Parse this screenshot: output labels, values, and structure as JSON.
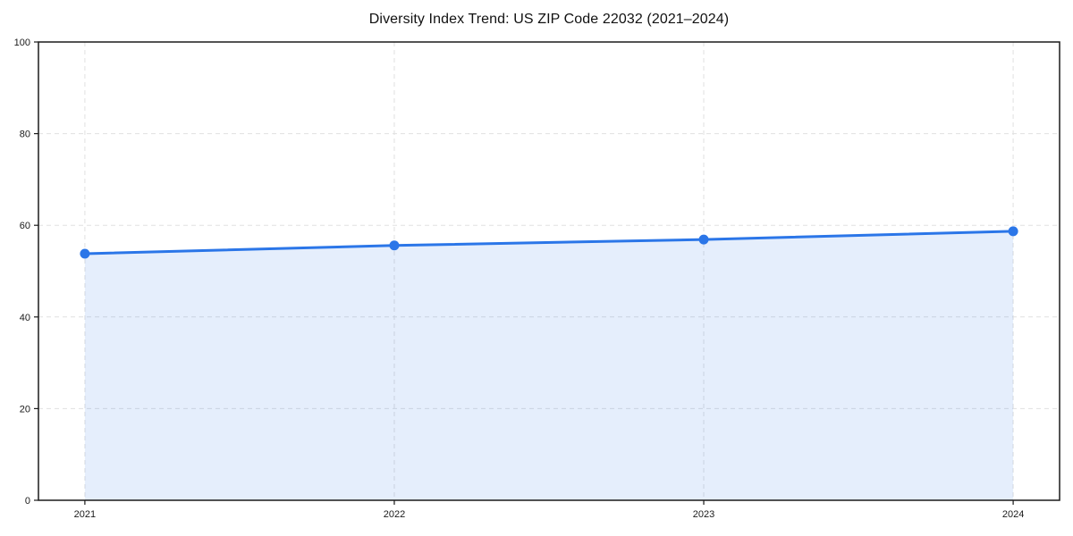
{
  "chart_data": {
    "type": "area",
    "title": "Diversity Index Trend: US ZIP Code 22032 (2021–2024)",
    "series_name": "Diversity Index",
    "x": [
      2021,
      2022,
      2023,
      2024
    ],
    "x_tick_labels": [
      "2021",
      "2022",
      "2023",
      "2024"
    ],
    "values": [
      53.8,
      55.6,
      56.9,
      58.7
    ],
    "xlabel": "",
    "ylabel": "",
    "xlim": [
      2020.85,
      2024.15
    ],
    "ylim": [
      0,
      100
    ],
    "yticks": [
      0,
      20,
      40,
      60,
      80,
      100
    ],
    "grid": true,
    "grid_style": "dashed",
    "legend_position": "none",
    "marker": "circle",
    "colors": {
      "line": "#2b76e8",
      "fill": "rgba(43, 118, 232, 0.12)",
      "grid": "#e0e0e0",
      "axis": "#1a1a1a",
      "text": "#1a1a1a",
      "background": "#ffffff"
    }
  }
}
